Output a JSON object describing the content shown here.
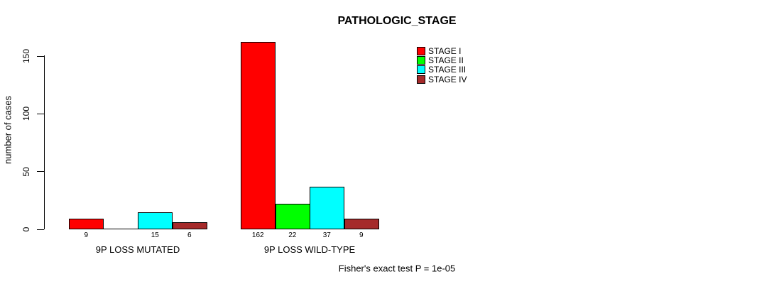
{
  "chart_data": {
    "type": "bar",
    "title": "PATHOLOGIC_STAGE",
    "xlabel": "",
    "ylabel": "number of cases",
    "ylim": [
      0,
      150
    ],
    "yticks": [
      0,
      50,
      100,
      150
    ],
    "grid": false,
    "legend_position": "top-right",
    "categories": [
      "9P LOSS MUTATED",
      "9P LOSS WILD-TYPE"
    ],
    "series": [
      {
        "name": "STAGE I",
        "color": "#FF0000",
        "values": [
          9,
          162
        ]
      },
      {
        "name": "STAGE II",
        "color": "#00FF00",
        "values": [
          0,
          22
        ]
      },
      {
        "name": "STAGE III",
        "color": "#00FFFF",
        "values": [
          15,
          37
        ]
      },
      {
        "name": "STAGE IV",
        "color": "#A52A2A",
        "values": [
          6,
          9
        ]
      }
    ],
    "bar_value_labels": {
      "group_1": [
        "9",
        "",
        "15",
        "6"
      ],
      "group_2": [
        "162",
        "22",
        "37",
        "9"
      ]
    },
    "zero_bars_unlabeled": true,
    "annotation": "Fisher's exact test P = 1e-05"
  }
}
